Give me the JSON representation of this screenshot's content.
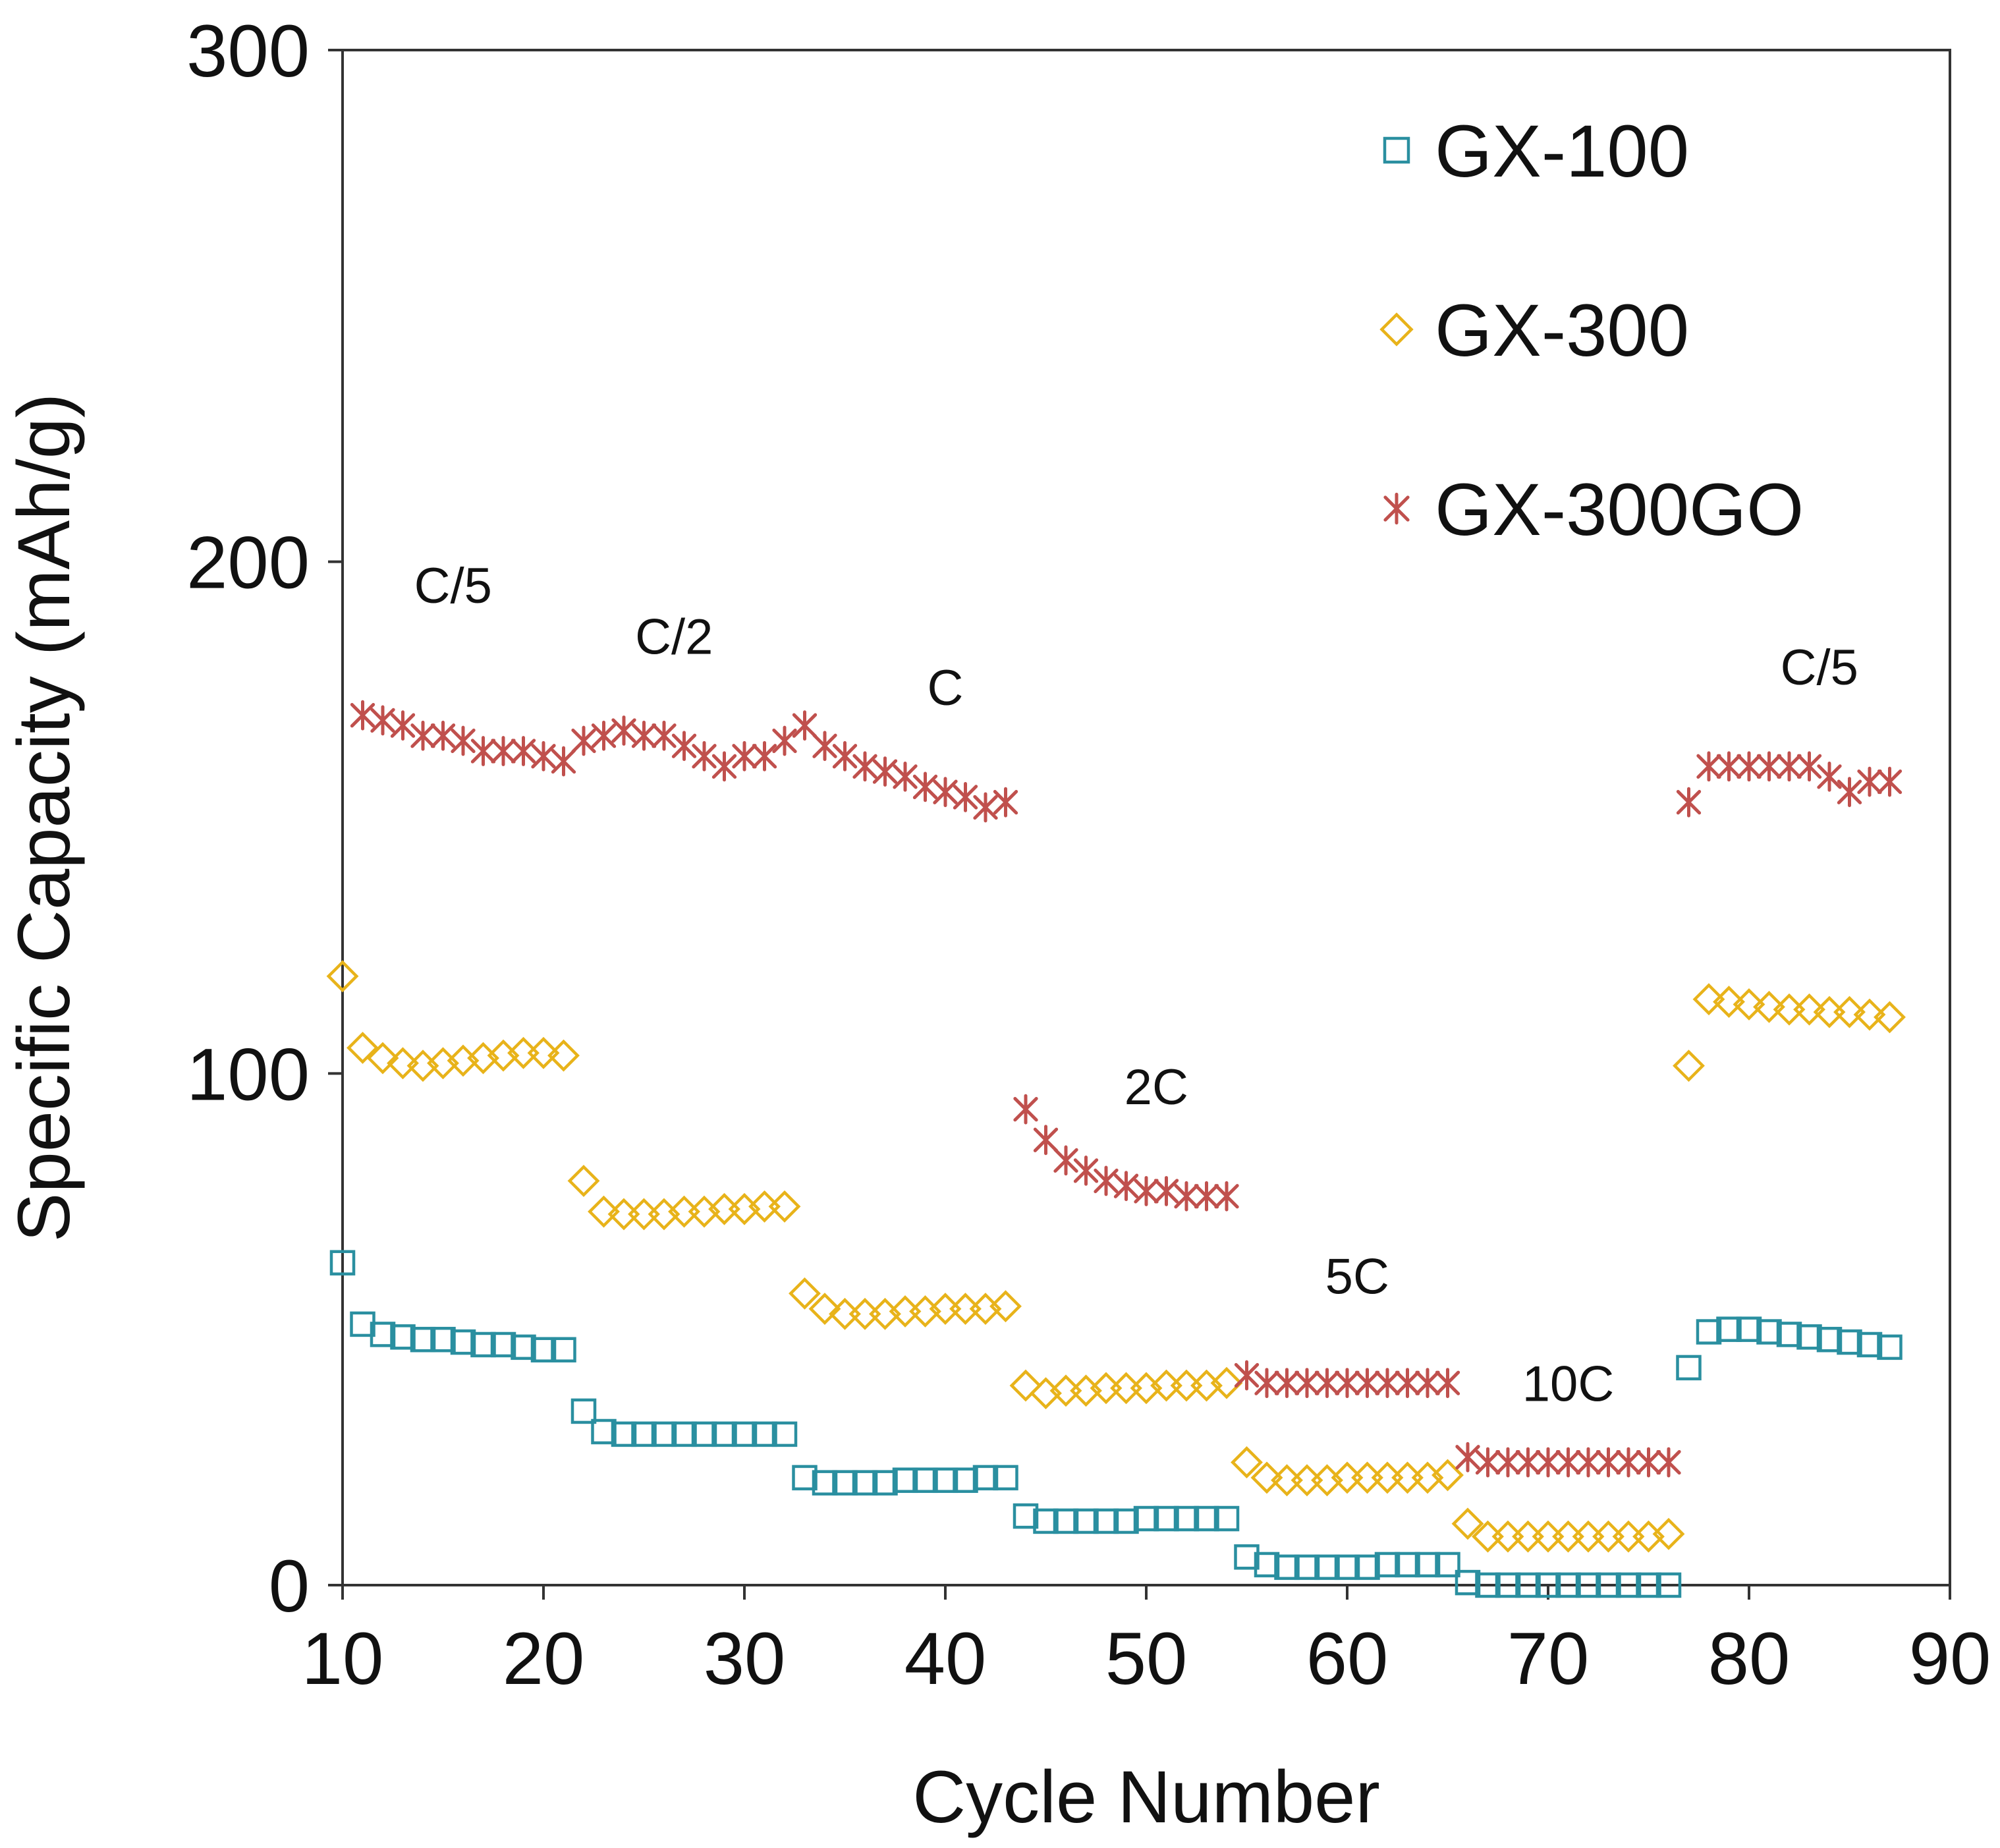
{
  "chart_data": {
    "type": "scatter",
    "title": "",
    "xlabel": "Cycle Number",
    "ylabel": "Specific Capacity (mAh/g)",
    "xlim": [
      10,
      90
    ],
    "ylim": [
      0,
      300
    ],
    "xticks": [
      10,
      20,
      30,
      40,
      50,
      60,
      70,
      80,
      90
    ],
    "yticks": [
      0,
      100,
      200,
      300
    ],
    "grid": false,
    "legend_position": "top-right",
    "rate_labels": [
      {
        "text": "C/5",
        "x": 15.5,
        "y": 192
      },
      {
        "text": "C/2",
        "x": 26.5,
        "y": 182
      },
      {
        "text": "C",
        "x": 40,
        "y": 172
      },
      {
        "text": "2C",
        "x": 50.5,
        "y": 94
      },
      {
        "text": "5C",
        "x": 60.5,
        "y": 57
      },
      {
        "text": "10C",
        "x": 71,
        "y": 36
      },
      {
        "text": "C/5",
        "x": 83.5,
        "y": 176
      }
    ],
    "series": [
      {
        "name": "GX-100",
        "marker": "square",
        "color": "#2a8fa0",
        "x": [
          10,
          11,
          12,
          13,
          14,
          15,
          16,
          17,
          18,
          19,
          20,
          21,
          22,
          23,
          24,
          25,
          26,
          27,
          28,
          29,
          30,
          31,
          32,
          33,
          34,
          35,
          36,
          37,
          38,
          39,
          40,
          41,
          42,
          43,
          44,
          45,
          46,
          47,
          48,
          49,
          50,
          51,
          52,
          53,
          54,
          55,
          56,
          57,
          58,
          59,
          60,
          61,
          62,
          63,
          64,
          65,
          66,
          67,
          68,
          69,
          70,
          71,
          72,
          73,
          74,
          75,
          76,
          77,
          78,
          79,
          80,
          81,
          82,
          83,
          84,
          85,
          86,
          87
        ],
        "y": [
          63,
          51,
          49,
          48.5,
          48,
          48,
          47.5,
          47,
          47,
          46.5,
          46,
          46,
          34,
          30,
          29.5,
          29.5,
          29.5,
          29.5,
          29.5,
          29.5,
          29.5,
          29.5,
          29.5,
          21,
          20,
          20,
          20,
          20,
          20.5,
          20.5,
          20.5,
          20.5,
          21,
          21,
          13.5,
          12.5,
          12.5,
          12.5,
          12.5,
          12.5,
          13,
          13,
          13,
          13,
          13,
          5.5,
          4,
          3.5,
          3.5,
          3.5,
          3.5,
          3.5,
          4,
          4,
          4,
          4,
          0.5,
          0,
          0,
          0,
          0,
          0,
          0,
          0,
          0,
          0,
          0,
          42.5,
          49.5,
          50,
          50,
          49.5,
          49,
          48.5,
          48,
          47.5,
          47,
          46.5
        ]
      },
      {
        "name": "GX-300",
        "marker": "diamond",
        "color": "#e8b31a",
        "x": [
          10,
          11,
          12,
          13,
          14,
          15,
          16,
          17,
          18,
          19,
          20,
          21,
          22,
          23,
          24,
          25,
          26,
          27,
          28,
          29,
          30,
          31,
          32,
          33,
          34,
          35,
          36,
          37,
          38,
          39,
          40,
          41,
          42,
          43,
          44,
          45,
          46,
          47,
          48,
          49,
          50,
          51,
          52,
          53,
          54,
          55,
          56,
          57,
          58,
          59,
          60,
          61,
          62,
          63,
          64,
          65,
          66,
          67,
          68,
          69,
          70,
          71,
          72,
          73,
          74,
          75,
          76,
          77,
          78,
          79,
          80,
          81,
          82,
          83,
          84,
          85,
          86,
          87
        ],
        "y": [
          119,
          105,
          103,
          102,
          101.5,
          102,
          102.5,
          103,
          103.5,
          104,
          104,
          103.5,
          79,
          73,
          72.5,
          72.5,
          72.5,
          73,
          73,
          73.5,
          73.5,
          74,
          74,
          57,
          54,
          53,
          53,
          53,
          53.5,
          53.5,
          54,
          54,
          54,
          54.5,
          39,
          37.5,
          38,
          38,
          38.5,
          38.5,
          38.5,
          39,
          39,
          39,
          39.5,
          24,
          21,
          20.5,
          20.5,
          20.5,
          21,
          21,
          21,
          21,
          21,
          21.5,
          12,
          9.5,
          9.5,
          9.5,
          9.5,
          9.5,
          9.5,
          9.5,
          9.5,
          9.5,
          10,
          101.5,
          114.5,
          114,
          113.5,
          113,
          112.5,
          112.5,
          112,
          112,
          111.5,
          111
        ]
      },
      {
        "name": "GX-300GO",
        "marker": "asterisk",
        "color": "#c0504d",
        "x": [
          11,
          12,
          13,
          14,
          15,
          16,
          17,
          18,
          19,
          20,
          21,
          22,
          23,
          24,
          25,
          26,
          27,
          28,
          29,
          30,
          31,
          32,
          33,
          34,
          35,
          36,
          37,
          38,
          39,
          40,
          41,
          42,
          43,
          44,
          45,
          46,
          47,
          48,
          49,
          50,
          51,
          52,
          53,
          54,
          55,
          56,
          57,
          58,
          59,
          60,
          61,
          62,
          63,
          64,
          65,
          66,
          67,
          68,
          69,
          70,
          71,
          72,
          73,
          74,
          75,
          76,
          77,
          78,
          79,
          80,
          81,
          82,
          83,
          84,
          85,
          86,
          87
        ],
        "y": [
          170,
          169,
          168,
          166,
          166,
          165,
          163,
          163,
          163,
          162,
          161,
          165,
          166,
          167,
          166,
          166,
          164,
          162,
          160,
          162,
          162,
          165,
          168,
          164,
          162,
          160,
          159,
          158,
          156,
          155,
          154,
          152,
          153,
          93,
          87,
          83,
          81,
          79,
          78,
          77,
          77,
          76,
          76,
          76,
          41,
          39.5,
          39.5,
          39.5,
          39.5,
          39.5,
          39.5,
          39.5,
          39.5,
          39.5,
          39.5,
          25,
          24,
          24,
          24,
          24,
          24,
          24,
          24,
          24,
          24,
          24,
          153,
          160,
          160,
          160,
          160,
          160,
          160,
          158,
          155,
          157,
          157
        ]
      }
    ]
  }
}
